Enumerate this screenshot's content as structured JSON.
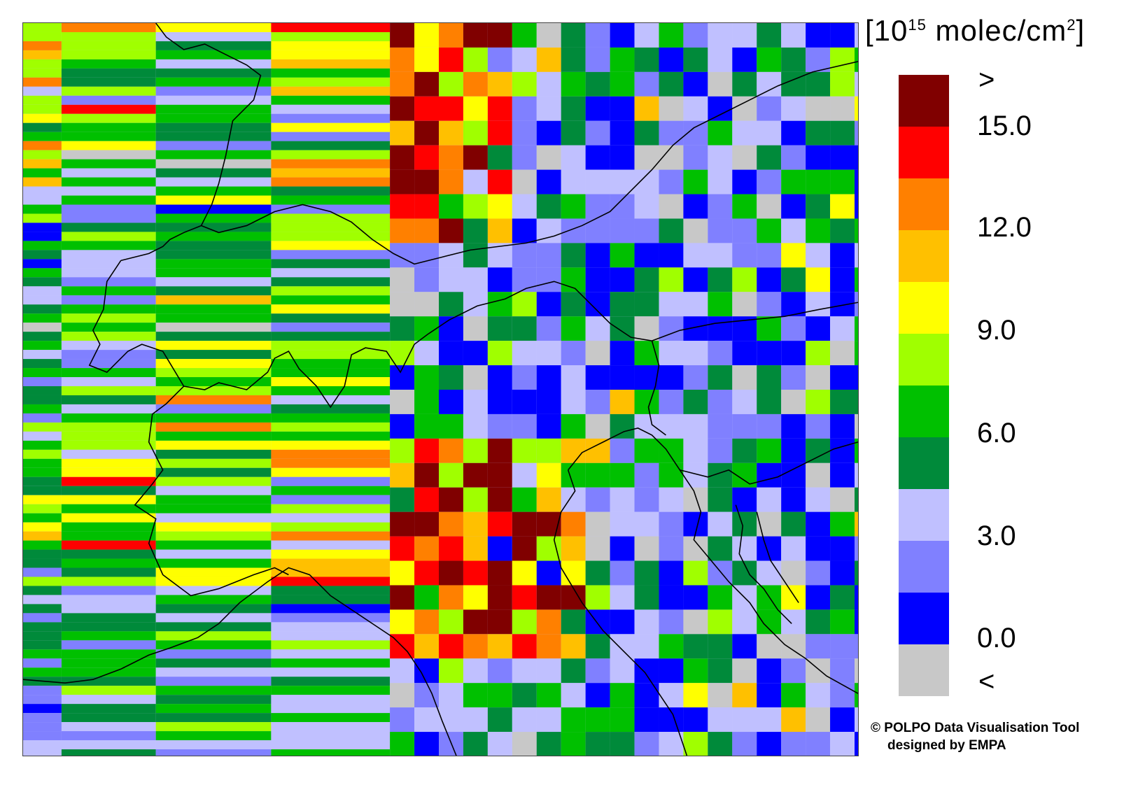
{
  "legend": {
    "unit_prefix": "[10",
    "unit_exponent": "15",
    "unit_suffix": " molec/cm",
    "unit_sq": "2",
    "unit_close": "]",
    "top_symbol": ">",
    "bottom_symbol": "<",
    "tick_labels": [
      "15.0",
      "12.0",
      "9.0",
      "6.0",
      "3.0",
      "0.0"
    ],
    "colors": [
      "#800000",
      "#ff0000",
      "#ff8000",
      "#ffc000",
      "#ffff00",
      "#a0ff00",
      "#00c000",
      "#008a3a",
      "#c0c0ff",
      "#8080ff",
      "#0000ff",
      "#c8c8c8"
    ]
  },
  "credit": {
    "line1": "© POLPO Data Visualisation Tool",
    "line2": "designed by EMPA"
  },
  "map": {
    "boundary_color": "#000000",
    "fill_no_data": "#c8c8c8"
  }
}
